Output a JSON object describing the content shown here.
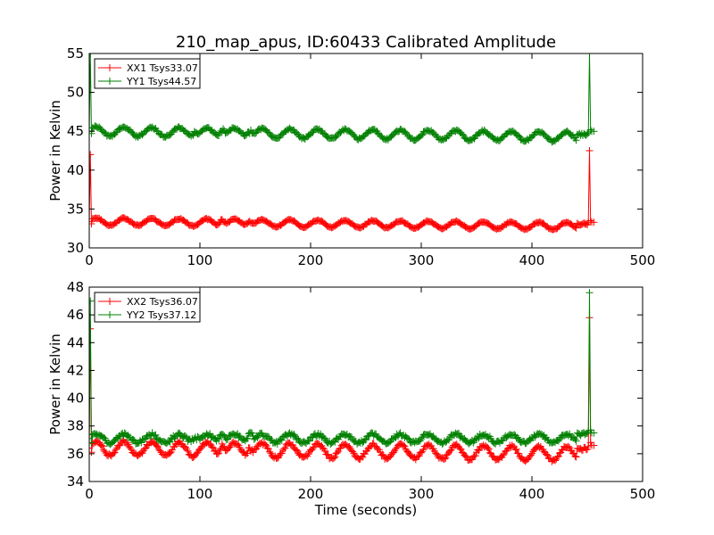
{
  "chart_data": [
    {
      "type": "line",
      "title": "210_map_apus, ID:60433 Calibrated Amplitude",
      "xlabel": "",
      "ylabel": "Power in Kelvin",
      "xlim": [
        0,
        500
      ],
      "ylim": [
        30,
        55
      ],
      "xticks": [
        "0",
        "100",
        "200",
        "300",
        "400",
        "500"
      ],
      "yticks": [
        "30",
        "35",
        "40",
        "45",
        "50",
        "55"
      ],
      "legend_position": "top-left",
      "marker": "+",
      "series": [
        {
          "name": "XX1 Tsys33.07",
          "color": "#ff0000",
          "base": 33.4,
          "osc_amp": 0.45,
          "period": 25,
          "drift": -0.6,
          "noise": 0.15,
          "bumps": [
            [
              120,
              0.9
            ],
            [
              145,
              0.8
            ]
          ],
          "start_spike": 42.0,
          "end_spike": 42.5,
          "end_value": 33.3
        },
        {
          "name": "YY1 Tsys44.57",
          "color": "#008000",
          "base": 45.0,
          "osc_amp": 0.6,
          "period": 25,
          "drift": -0.7,
          "noise": 0.25,
          "bumps": [
            [
              120,
              1.2
            ],
            [
              145,
              1.0
            ],
            [
              95,
              0.6
            ]
          ],
          "start_spike": 55.0,
          "end_spike": 55.0,
          "end_value": 45.0
        }
      ]
    },
    {
      "type": "line",
      "title": "",
      "xlabel": "Time (seconds)",
      "ylabel": "Power in Kelvin",
      "xlim": [
        0,
        500
      ],
      "ylim": [
        34,
        48
      ],
      "xticks": [
        "0",
        "100",
        "200",
        "300",
        "400",
        "500"
      ],
      "yticks": [
        "34",
        "36",
        "38",
        "40",
        "42",
        "44",
        "46",
        "48"
      ],
      "legend_position": "top-left",
      "marker": "+",
      "series": [
        {
          "name": "XX2 Tsys36.07",
          "color": "#ff0000",
          "base": 36.4,
          "osc_amp": 0.5,
          "period": 25,
          "drift": -0.4,
          "noise": 0.2,
          "bumps": [
            [
              120,
              0.9
            ],
            [
              145,
              0.7
            ]
          ],
          "start_spike": 45.0,
          "end_spike": 45.8,
          "end_value": 36.6
        },
        {
          "name": "YY2 Tsys37.12",
          "color": "#008000",
          "base": 37.1,
          "osc_amp": 0.3,
          "period": 25,
          "drift": 0.0,
          "noise": 0.25,
          "bumps": [
            [
              120,
              1.0
            ],
            [
              145,
              0.9
            ],
            [
              95,
              0.5
            ]
          ],
          "start_spike": 47.0,
          "end_spike": 47.6,
          "end_value": 37.5
        }
      ]
    }
  ]
}
